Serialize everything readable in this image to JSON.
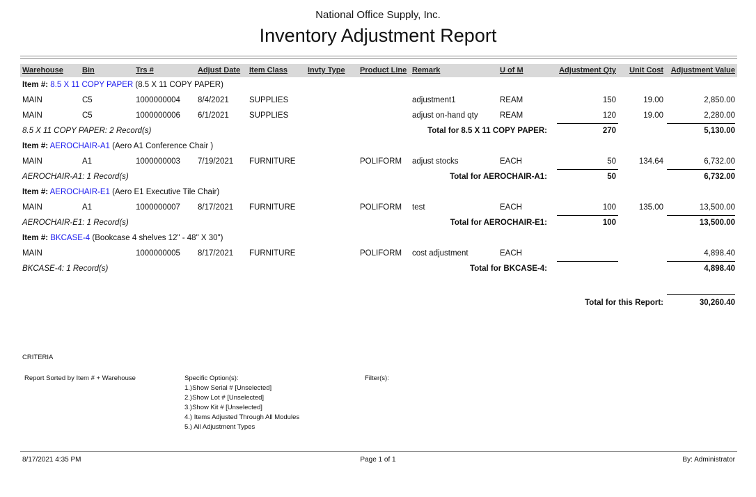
{
  "company": "National Office Supply, Inc.",
  "title": "Inventory Adjustment Report",
  "columns": [
    "Warehouse",
    "Bin",
    "Trs #",
    "Adjust Date",
    "Item Class",
    "Invty Type",
    "Product Line",
    "Remark",
    "U of M",
    "Adjustment  Qty",
    "Unit Cost",
    "Adjustment Value"
  ],
  "item_prefix": "Item #:",
  "groups": [
    {
      "item": "8.5 X 11 COPY PAPER",
      "desc": "(8.5 X 11 COPY PAPER)",
      "rows": [
        [
          "MAIN",
          "C5",
          "1000000004",
          "8/4/2021",
          "SUPPLIES",
          "",
          "",
          "adjustment1",
          "REAM",
          "150",
          "19.00",
          "2,850.00"
        ],
        [
          "MAIN",
          "C5",
          "1000000006",
          "6/1/2021",
          "SUPPLIES",
          "",
          "",
          "adjust on-hand qty",
          "REAM",
          "120",
          "19.00",
          "2,280.00"
        ]
      ],
      "records": "8.5 X 11 COPY PAPER: 2 Record(s)",
      "total_label": "Total for 8.5 X 11 COPY PAPER:",
      "total_qty": "270",
      "total_value": "5,130.00"
    },
    {
      "item": "AEROCHAIR-A1",
      "desc": "(Aero A1 Conference Chair )",
      "rows": [
        [
          "MAIN",
          "A1",
          "1000000003",
          "7/19/2021",
          "FURNITURE",
          "",
          "POLIFORM",
          "adjust stocks",
          "EACH",
          "50",
          "134.64",
          "6,732.00"
        ]
      ],
      "records": "AEROCHAIR-A1: 1 Record(s)",
      "total_label": "Total for AEROCHAIR-A1:",
      "total_qty": "50",
      "total_value": "6,732.00"
    },
    {
      "item": "AEROCHAIR-E1",
      "desc": "(Aero E1 Executive Tile Chair)",
      "rows": [
        [
          "MAIN",
          "A1",
          "1000000007",
          "8/17/2021",
          "FURNITURE",
          "",
          "POLIFORM",
          "test",
          "EACH",
          "100",
          "135.00",
          "13,500.00"
        ]
      ],
      "records": "AEROCHAIR-E1: 1 Record(s)",
      "total_label": "Total for AEROCHAIR-E1:",
      "total_qty": "100",
      "total_value": "13,500.00"
    },
    {
      "item": "BKCASE-4",
      "desc": "(Bookcase 4 shelves 12\" - 48\" X 30\")",
      "rows": [
        [
          "MAIN",
          "",
          "1000000005",
          "8/17/2021",
          "FURNITURE",
          "",
          "POLIFORM",
          "cost adjustment",
          "EACH",
          "",
          "",
          "4,898.40"
        ]
      ],
      "records": "BKCASE-4: 1 Record(s)",
      "total_label": "Total for BKCASE-4:",
      "total_qty": "",
      "total_value": "4,898.40"
    }
  ],
  "report_total_label": "Total for this Report:",
  "report_total_value": "30,260.40",
  "criteria": {
    "heading": "CRITERIA",
    "sorted": "Report Sorted by Item # + Warehouse",
    "options_label": "Specific Option(s):",
    "options": [
      "1.)Show Serial # [Unselected]",
      "2.)Show Lot # [Unselected]",
      "3.)Show Kit # [Unselected]",
      "4.) Items Adjusted Through All Modules",
      "5.) All Adjustment Types"
    ],
    "filters_label": "Filter(s):"
  },
  "footer": {
    "datetime": "8/17/2021 4:35 PM",
    "page": "Page 1 of 1",
    "user": "By: Administrator"
  },
  "colors": {
    "link": "#1a1aee",
    "header_bar": "#d9d9d9"
  }
}
